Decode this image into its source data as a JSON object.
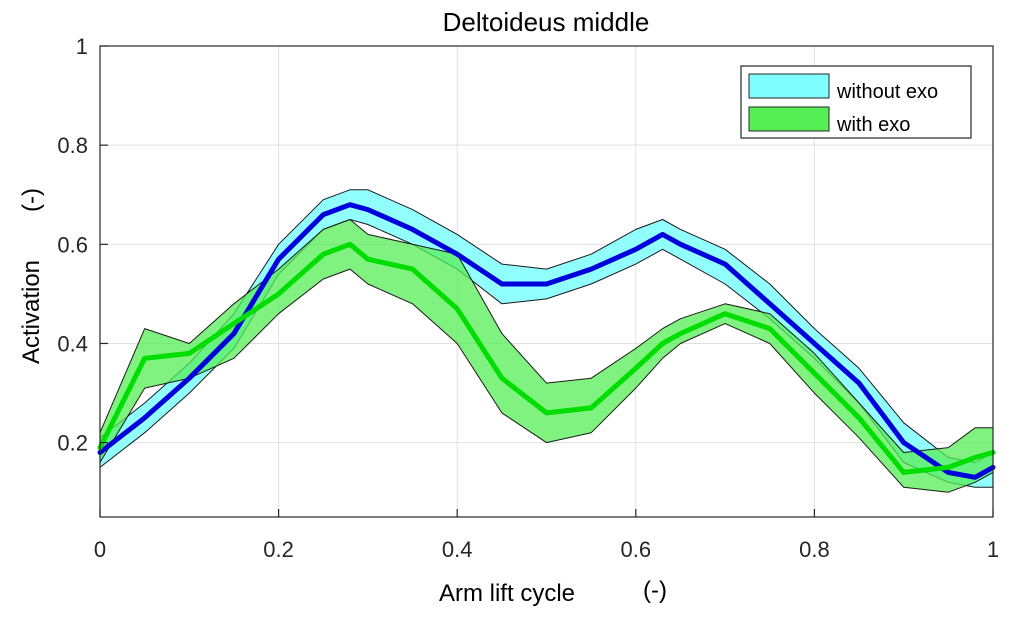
{
  "chart_data": {
    "type": "line",
    "title": "Deltoideus middle",
    "xlabel": "Arm lift cycle",
    "xlabel_unit": "(-)",
    "ylabel": "Activation",
    "ylabel_unit": "(-)",
    "xlim": [
      0,
      1
    ],
    "ylim": [
      0.05,
      1
    ],
    "xticks": [
      0,
      0.2,
      0.4,
      0.6,
      0.8,
      1
    ],
    "xtick_labels": [
      "0",
      "0.2",
      "0.4",
      "0.6",
      "0.8",
      "1"
    ],
    "yticks": [
      0.2,
      0.4,
      0.6,
      0.8,
      1
    ],
    "ytick_labels": [
      "0.2",
      "0.4",
      "0.6",
      "0.8",
      "1"
    ],
    "grid": true,
    "legend_position": "top-right",
    "x": [
      0,
      0.05,
      0.1,
      0.15,
      0.2,
      0.25,
      0.28,
      0.3,
      0.35,
      0.4,
      0.45,
      0.5,
      0.55,
      0.6,
      0.63,
      0.65,
      0.7,
      0.75,
      0.8,
      0.85,
      0.9,
      0.95,
      0.98,
      1
    ],
    "series": [
      {
        "name": "without exo",
        "line_color": "#0000dd",
        "band_color": "#7fffff",
        "mean": [
          0.18,
          0.25,
          0.33,
          0.42,
          0.57,
          0.66,
          0.68,
          0.67,
          0.63,
          0.58,
          0.52,
          0.52,
          0.55,
          0.59,
          0.62,
          0.6,
          0.56,
          0.48,
          0.4,
          0.32,
          0.2,
          0.14,
          0.13,
          0.15
        ],
        "lower": [
          0.15,
          0.22,
          0.3,
          0.39,
          0.54,
          0.63,
          0.65,
          0.64,
          0.6,
          0.55,
          0.48,
          0.49,
          0.52,
          0.56,
          0.59,
          0.57,
          0.52,
          0.45,
          0.37,
          0.28,
          0.16,
          0.12,
          0.11,
          0.11
        ],
        "upper": [
          0.21,
          0.28,
          0.36,
          0.46,
          0.6,
          0.69,
          0.71,
          0.71,
          0.67,
          0.62,
          0.56,
          0.55,
          0.58,
          0.63,
          0.65,
          0.63,
          0.59,
          0.52,
          0.43,
          0.35,
          0.24,
          0.17,
          0.16,
          0.18
        ]
      },
      {
        "name": "with exo",
        "line_color": "#00dd00",
        "band_color": "#55ee55",
        "mean": [
          0.19,
          0.37,
          0.38,
          0.44,
          0.5,
          0.58,
          0.6,
          0.57,
          0.55,
          0.47,
          0.33,
          0.26,
          0.27,
          0.35,
          0.4,
          0.42,
          0.46,
          0.43,
          0.34,
          0.25,
          0.14,
          0.15,
          0.17,
          0.18
        ],
        "lower": [
          0.16,
          0.31,
          0.33,
          0.37,
          0.46,
          0.53,
          0.55,
          0.52,
          0.48,
          0.4,
          0.26,
          0.2,
          0.22,
          0.31,
          0.37,
          0.4,
          0.44,
          0.4,
          0.3,
          0.21,
          0.11,
          0.1,
          0.12,
          0.14
        ],
        "upper": [
          0.22,
          0.43,
          0.4,
          0.48,
          0.55,
          0.63,
          0.65,
          0.62,
          0.6,
          0.58,
          0.42,
          0.32,
          0.33,
          0.39,
          0.43,
          0.45,
          0.48,
          0.46,
          0.38,
          0.28,
          0.18,
          0.19,
          0.23,
          0.23
        ]
      }
    ]
  }
}
